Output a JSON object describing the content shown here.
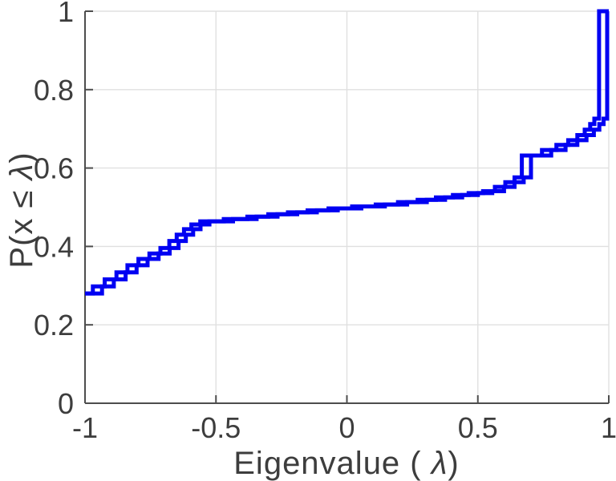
{
  "figure": {
    "background_color": "#ffffff"
  },
  "chart_data": {
    "type": "line",
    "subtype": "ecdf-step-stairs",
    "title": "",
    "xlabel": "Eigenvalue ( λ)",
    "ylabel": "P(x ≤ λ)",
    "xlabel_parts": {
      "prefix": "Eigenvalue ( ",
      "lambda": "λ",
      "suffix": ")"
    },
    "ylabel_parts": {
      "prefix": "P(x ≤ ",
      "lambda": "λ",
      "suffix": ")"
    },
    "xlim": [
      -1,
      1
    ],
    "ylim": [
      0,
      1
    ],
    "grid": true,
    "legend": "none",
    "line_color": "#0000f2",
    "grid_color": "#e0e0e0",
    "axis_color": "#4d4d4d",
    "text_color": "#3d3d3d",
    "x_ticks": {
      "values": [
        -1,
        -0.5,
        0,
        0.5,
        1
      ],
      "labels": [
        "-1",
        "-0.5",
        "0",
        "0.5",
        "1"
      ]
    },
    "y_ticks": {
      "values": [
        0,
        0.2,
        0.4,
        0.6,
        0.8,
        1
      ],
      "labels": [
        "0",
        "0.2",
        "0.4",
        "0.6",
        "0.8",
        "1"
      ]
    },
    "series": [
      {
        "name": "ecdf-curve-1",
        "points": [
          [
            -1.0,
            0.28
          ],
          [
            -0.97,
            0.298
          ],
          [
            -0.925,
            0.316
          ],
          [
            -0.88,
            0.334
          ],
          [
            -0.838,
            0.352
          ],
          [
            -0.796,
            0.368
          ],
          [
            -0.754,
            0.382
          ],
          [
            -0.712,
            0.396
          ],
          [
            -0.678,
            0.414
          ],
          [
            -0.65,
            0.43
          ],
          [
            -0.622,
            0.444
          ],
          [
            -0.594,
            0.456
          ],
          [
            -0.56,
            0.464
          ],
          [
            -0.47,
            0.47
          ],
          [
            -0.38,
            0.476
          ],
          [
            -0.3,
            0.482
          ],
          [
            -0.225,
            0.487
          ],
          [
            -0.15,
            0.492
          ],
          [
            -0.07,
            0.497
          ],
          [
            0.02,
            0.502
          ],
          [
            0.11,
            0.507
          ],
          [
            0.195,
            0.513
          ],
          [
            0.27,
            0.519
          ],
          [
            0.34,
            0.525
          ],
          [
            0.405,
            0.531
          ],
          [
            0.465,
            0.536
          ],
          [
            0.52,
            0.541
          ],
          [
            0.565,
            0.552
          ],
          [
            0.605,
            0.564
          ],
          [
            0.64,
            0.576
          ],
          [
            0.668,
            0.632
          ],
          [
            0.745,
            0.646
          ],
          [
            0.8,
            0.659
          ],
          [
            0.845,
            0.671
          ],
          [
            0.88,
            0.684
          ],
          [
            0.908,
            0.698
          ],
          [
            0.929,
            0.712
          ],
          [
            0.945,
            0.726
          ],
          [
            0.963,
            1.0
          ],
          [
            1.0,
            1.0
          ]
        ]
      },
      {
        "name": "ecdf-curve-2",
        "points": [
          [
            -1.0,
            0.28
          ],
          [
            -0.935,
            0.298
          ],
          [
            -0.89,
            0.316
          ],
          [
            -0.845,
            0.334
          ],
          [
            -0.803,
            0.352
          ],
          [
            -0.761,
            0.368
          ],
          [
            -0.719,
            0.382
          ],
          [
            -0.677,
            0.396
          ],
          [
            -0.643,
            0.414
          ],
          [
            -0.615,
            0.43
          ],
          [
            -0.587,
            0.444
          ],
          [
            -0.559,
            0.456
          ],
          [
            -0.525,
            0.464
          ],
          [
            -0.435,
            0.47
          ],
          [
            -0.345,
            0.476
          ],
          [
            -0.265,
            0.482
          ],
          [
            -0.19,
            0.487
          ],
          [
            -0.115,
            0.492
          ],
          [
            -0.035,
            0.497
          ],
          [
            0.055,
            0.502
          ],
          [
            0.145,
            0.507
          ],
          [
            0.23,
            0.513
          ],
          [
            0.305,
            0.519
          ],
          [
            0.375,
            0.525
          ],
          [
            0.44,
            0.531
          ],
          [
            0.5,
            0.536
          ],
          [
            0.555,
            0.541
          ],
          [
            0.6,
            0.552
          ],
          [
            0.64,
            0.564
          ],
          [
            0.675,
            0.576
          ],
          [
            0.703,
            0.632
          ],
          [
            0.78,
            0.646
          ],
          [
            0.835,
            0.659
          ],
          [
            0.88,
            0.671
          ],
          [
            0.915,
            0.684
          ],
          [
            0.943,
            0.698
          ],
          [
            0.964,
            0.712
          ],
          [
            0.98,
            0.726
          ],
          [
            0.994,
            1.0
          ],
          [
            1.0,
            1.0
          ]
        ]
      }
    ]
  }
}
